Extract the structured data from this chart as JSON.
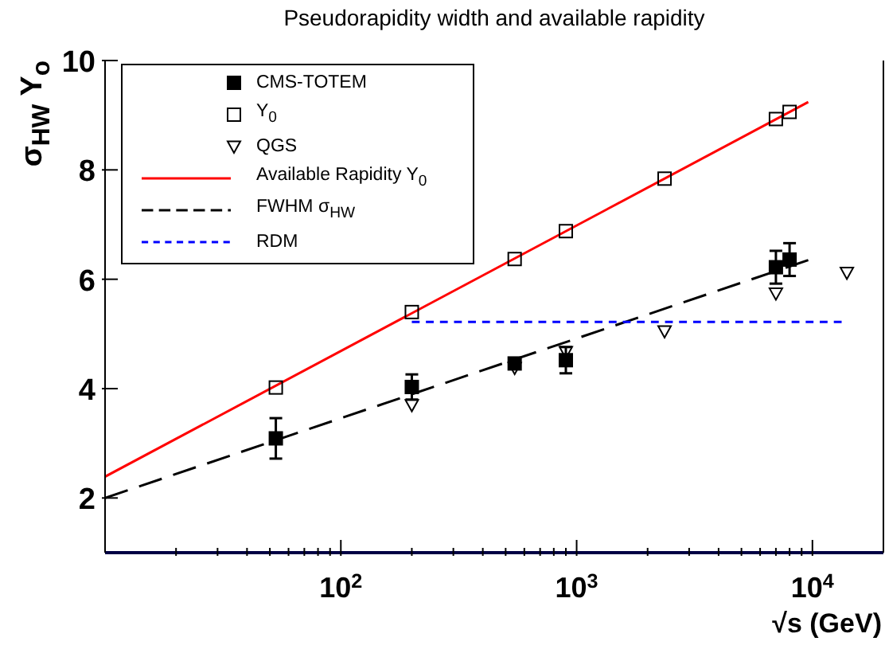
{
  "chart_data": {
    "type": "scatter",
    "title": "Pseudorapidity width and available rapidity",
    "xlabel": "√s (GeV)",
    "ylabel": "σ$_{HW}$ Y$_{o}$",
    "log": "x",
    "xlim": [
      10,
      20000
    ],
    "ylim": [
      1,
      10
    ],
    "xticks": [
      {
        "value": 20,
        "label": null
      },
      {
        "value": 30,
        "label": null
      },
      {
        "value": 40,
        "label": null
      },
      {
        "value": 50,
        "label": null
      },
      {
        "value": 60,
        "label": null
      },
      {
        "value": 70,
        "label": null
      },
      {
        "value": 80,
        "label": null
      },
      {
        "value": 90,
        "label": null
      },
      {
        "value": 100,
        "label": "10$^{2}$"
      },
      {
        "value": 200,
        "label": null
      },
      {
        "value": 300,
        "label": null
      },
      {
        "value": 400,
        "label": null
      },
      {
        "value": 500,
        "label": null
      },
      {
        "value": 600,
        "label": null
      },
      {
        "value": 700,
        "label": null
      },
      {
        "value": 800,
        "label": null
      },
      {
        "value": 900,
        "label": null
      },
      {
        "value": 1000,
        "label": "10$^{3}$"
      },
      {
        "value": 2000,
        "label": null
      },
      {
        "value": 3000,
        "label": null
      },
      {
        "value": 4000,
        "label": null
      },
      {
        "value": 5000,
        "label": null
      },
      {
        "value": 6000,
        "label": null
      },
      {
        "value": 7000,
        "label": null
      },
      {
        "value": 8000,
        "label": null
      },
      {
        "value": 9000,
        "label": null
      },
      {
        "value": 10000,
        "label": "10$^{4}$"
      }
    ],
    "yticks": [
      2,
      4,
      6,
      8,
      10
    ],
    "grid": false,
    "legend": "top left",
    "series": [
      {
        "name": "CMS-TOTEM",
        "type": "scatter",
        "marker": "square",
        "color": "#000000",
        "x": [
          53,
          200,
          546,
          900,
          7000,
          8000
        ],
        "values": [
          3.09,
          4.03,
          4.46,
          4.52,
          6.22,
          6.36
        ],
        "errors": [
          0.37,
          0.23,
          0.1,
          0.24,
          0.3,
          0.3
        ]
      },
      {
        "name": "Y$_{0}$",
        "type": "scatter",
        "marker": "square",
        "color": "#000000",
        "x": [
          53,
          200,
          546,
          900,
          2360,
          7000,
          8000
        ],
        "values": [
          4.02,
          5.4,
          6.37,
          6.88,
          7.84,
          8.93,
          9.06
        ]
      },
      {
        "name": "QGS",
        "type": "scatter",
        "marker": "triangle",
        "color": "#000000",
        "x": [
          200,
          546,
          900,
          2360,
          7000,
          14000
        ],
        "values": [
          3.7,
          4.38,
          4.67,
          5.05,
          5.74,
          6.12
        ]
      },
      {
        "name": "Available Rapidity Y$_{0}$",
        "type": "line",
        "marker": "none",
        "line_style": "solid",
        "color": "#ff0000",
        "x": [
          10,
          9600
        ],
        "values": [
          2.39,
          9.24
        ]
      },
      {
        "name": "FWHM σ$_{HW}$",
        "type": "line",
        "marker": "none",
        "line_style": "dashed",
        "color": "#000000",
        "x": [
          10,
          9600
        ],
        "values": [
          2.0,
          6.35
        ]
      },
      {
        "name": "RDM",
        "type": "line",
        "marker": "none",
        "line_style": "dashed",
        "color": "#0000ff",
        "x": [
          200,
          13300
        ],
        "values": [
          5.22,
          5.22
        ]
      }
    ]
  }
}
